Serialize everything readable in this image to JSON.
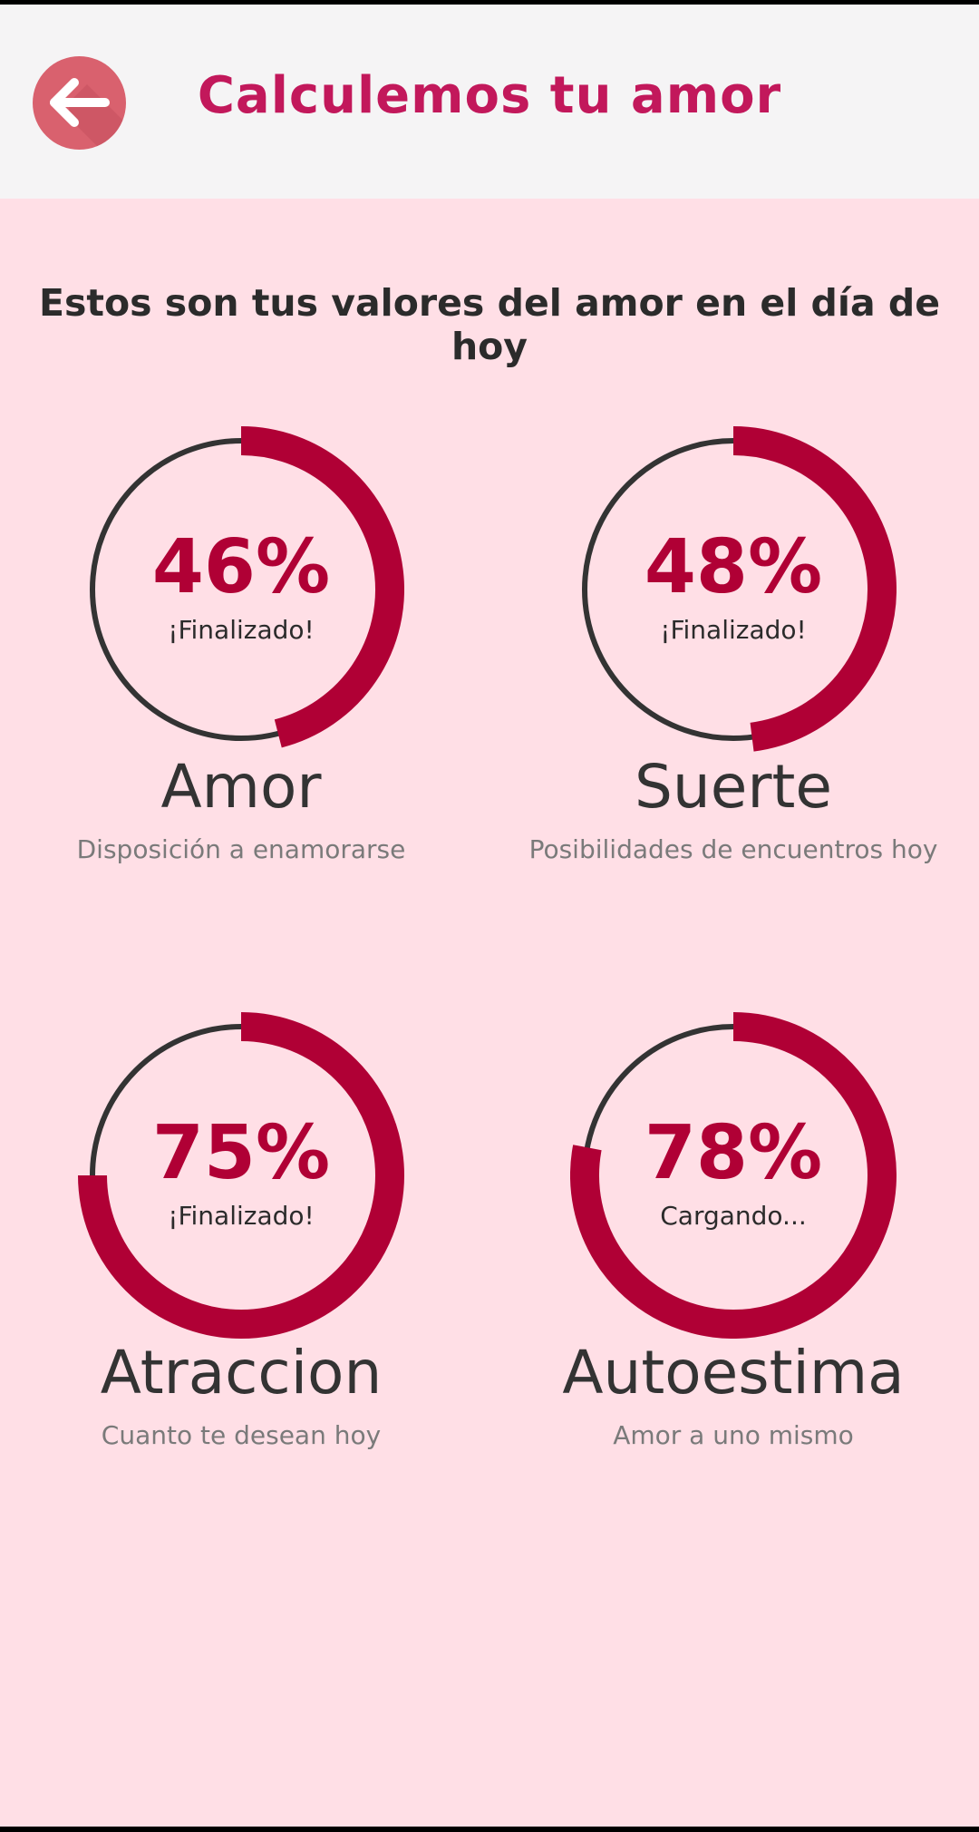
{
  "header": {
    "title": "Calculemos tu amor",
    "back_icon": "arrow-left-icon"
  },
  "subtitle": "Estos son tus valores del amor en el día de hoy",
  "colors": {
    "accent": "#b00035",
    "title": "#c2185b",
    "track": "#333333",
    "background": "#ffdfe6",
    "header_bg": "#f5f4f5",
    "back_button": "#d9616e"
  },
  "stats": [
    {
      "percent_label": "46%",
      "value": 46,
      "status": "¡Finalizado!",
      "title": "Amor",
      "description": "Disposición a enamorarse"
    },
    {
      "percent_label": "48%",
      "value": 48,
      "status": "¡Finalizado!",
      "title": "Suerte",
      "description": "Posibilidades de encuentros hoy"
    },
    {
      "percent_label": "75%",
      "value": 75,
      "status": "¡Finalizado!",
      "title": "Atraccion",
      "description": "Cuanto te desean hoy"
    },
    {
      "percent_label": "78%",
      "value": 78,
      "status": "Cargando...",
      "title": "Autoestima",
      "description": "Amor a uno mismo"
    }
  ]
}
